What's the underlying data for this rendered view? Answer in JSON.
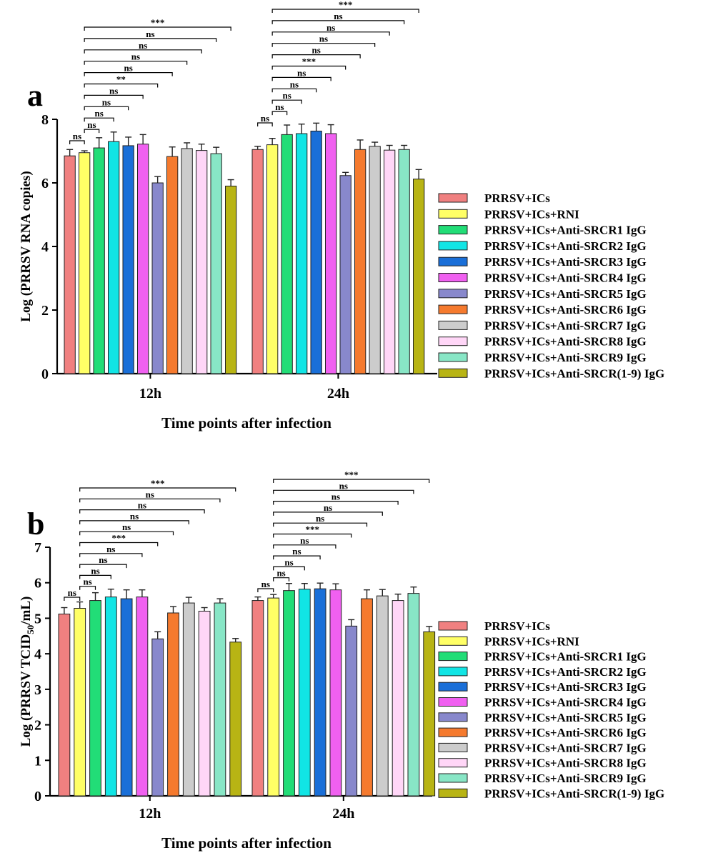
{
  "colors": [
    "#f08080",
    "#ffff66",
    "#22dd77",
    "#11e5e5",
    "#1a6fd8",
    "#f060f0",
    "#8888cc",
    "#f57a2e",
    "#cccccc",
    "#ffd6f7",
    "#88e6c6",
    "#b8b414"
  ],
  "chart_data": [
    {
      "panel": "a",
      "type": "bar",
      "ylabel": "Log (PRRSV RNA copies)",
      "xlabel": "Time points after infection",
      "ylim": [
        0,
        8
      ],
      "yticks": [
        "0",
        "2",
        "4",
        "6",
        "8"
      ],
      "categories": [
        "12h",
        "24h"
      ],
      "series": [
        {
          "name": "PRRSV+ICs",
          "values": [
            6.85,
            7.05
          ],
          "errors": [
            0.2,
            0.1
          ]
        },
        {
          "name": "PRRSV+ICs+RNI",
          "values": [
            6.95,
            7.2
          ],
          "errors": [
            0.06,
            0.2
          ]
        },
        {
          "name": "PRRSV+ICs+Anti-SRCR1 IgG",
          "values": [
            7.1,
            7.52
          ],
          "errors": [
            0.32,
            0.3
          ]
        },
        {
          "name": "PRRSV+ICs+Anti-SRCR2 IgG",
          "values": [
            7.3,
            7.55
          ],
          "errors": [
            0.3,
            0.3
          ]
        },
        {
          "name": "PRRSV+ICs+Anti-SRCR3 IgG",
          "values": [
            7.17,
            7.63
          ],
          "errors": [
            0.27,
            0.25
          ]
        },
        {
          "name": "PRRSV+ICs+Anti-SRCR4 IgG",
          "values": [
            7.22,
            7.55
          ],
          "errors": [
            0.3,
            0.28
          ]
        },
        {
          "name": "PRRSV+ICs+Anti-SRCR5 IgG",
          "values": [
            6.0,
            6.23
          ],
          "errors": [
            0.2,
            0.1
          ]
        },
        {
          "name": "PRRSV+ICs+Anti-SRCR6 IgG",
          "values": [
            6.83,
            7.05
          ],
          "errors": [
            0.3,
            0.3
          ]
        },
        {
          "name": "PRRSV+ICs+Anti-SRCR7 IgG",
          "values": [
            7.08,
            7.15
          ],
          "errors": [
            0.18,
            0.13
          ]
        },
        {
          "name": "PRRSV+ICs+Anti-SRCR8 IgG",
          "values": [
            7.02,
            7.03
          ],
          "errors": [
            0.2,
            0.15
          ]
        },
        {
          "name": "PRRSV+ICs+Anti-SRCR9 IgG",
          "values": [
            6.92,
            7.05
          ],
          "errors": [
            0.2,
            0.13
          ]
        },
        {
          "name": "PRRSV+ICs+Anti-SRCR(1-9) IgG",
          "values": [
            5.9,
            6.12
          ],
          "errors": [
            0.2,
            0.3
          ]
        }
      ],
      "comparisons": [
        [
          "ns",
          "ns",
          "ns",
          "ns",
          "ns",
          "**",
          "ns",
          "ns",
          "ns",
          "ns",
          "***"
        ],
        [
          "ns",
          "ns",
          "ns",
          "ns",
          "ns",
          "***",
          "ns",
          "ns",
          "ns",
          "ns",
          "***"
        ]
      ]
    },
    {
      "panel": "b",
      "type": "bar",
      "ylabel": "Log (PRRSV TCID",
      "ylabel_sub": "50",
      "ylabel_end": "/mL)",
      "xlabel": "Time points after infection",
      "ylim": [
        0,
        7
      ],
      "yticks": [
        "0",
        "1",
        "2",
        "3",
        "4",
        "5",
        "6",
        "7"
      ],
      "categories": [
        "12h",
        "24h"
      ],
      "series": [
        {
          "name": "PRRSV+ICs",
          "values": [
            5.12,
            5.5
          ],
          "errors": [
            0.18,
            0.1
          ]
        },
        {
          "name": "PRRSV+ICs+RNI",
          "values": [
            5.28,
            5.57
          ],
          "errors": [
            0.18,
            0.1
          ]
        },
        {
          "name": "PRRSV+ICs+Anti-SRCR1 IgG",
          "values": [
            5.5,
            5.78
          ],
          "errors": [
            0.22,
            0.2
          ]
        },
        {
          "name": "PRRSV+ICs+Anti-SRCR2 IgG",
          "values": [
            5.6,
            5.82
          ],
          "errors": [
            0.22,
            0.16
          ]
        },
        {
          "name": "PRRSV+ICs+Anti-SRCR3 IgG",
          "values": [
            5.55,
            5.83
          ],
          "errors": [
            0.25,
            0.16
          ]
        },
        {
          "name": "PRRSV+ICs+Anti-SRCR4 IgG",
          "values": [
            5.6,
            5.8
          ],
          "errors": [
            0.2,
            0.17
          ]
        },
        {
          "name": "PRRSV+ICs+Anti-SRCR5 IgG",
          "values": [
            4.42,
            4.78
          ],
          "errors": [
            0.2,
            0.18
          ]
        },
        {
          "name": "PRRSV+ICs+Anti-SRCR6 IgG",
          "values": [
            5.15,
            5.55
          ],
          "errors": [
            0.18,
            0.25
          ]
        },
        {
          "name": "PRRSV+ICs+Anti-SRCR7 IgG",
          "values": [
            5.43,
            5.63
          ],
          "errors": [
            0.16,
            0.18
          ]
        },
        {
          "name": "PRRSV+ICs+Anti-SRCR8 IgG",
          "values": [
            5.2,
            5.5
          ],
          "errors": [
            0.1,
            0.18
          ]
        },
        {
          "name": "PRRSV+ICs+Anti-SRCR9 IgG",
          "values": [
            5.43,
            5.7
          ],
          "errors": [
            0.12,
            0.18
          ]
        },
        {
          "name": "PRRSV+ICs+Anti-SRCR(1-9) IgG",
          "values": [
            4.33,
            4.62
          ],
          "errors": [
            0.1,
            0.15
          ]
        }
      ],
      "comparisons": [
        [
          "ns",
          "ns",
          "ns",
          "ns",
          "ns",
          "***",
          "ns",
          "ns",
          "ns",
          "ns",
          "***"
        ],
        [
          "ns",
          "ns",
          "ns",
          "ns",
          "ns",
          "***",
          "ns",
          "ns",
          "ns",
          "ns",
          "***"
        ]
      ]
    }
  ]
}
